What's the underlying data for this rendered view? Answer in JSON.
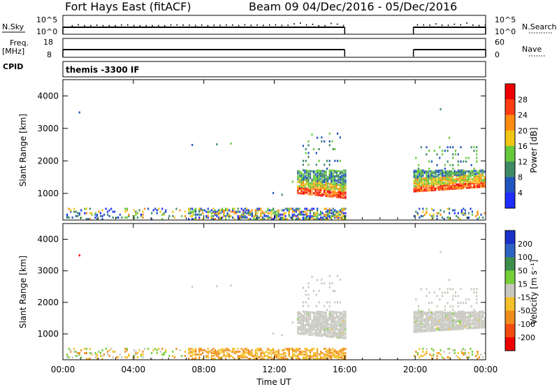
{
  "header": {
    "title_left": "Fort Hays East (fitACF)",
    "title_right": "Beam 09  04/Dec/2016 - 05/Dec/2016"
  },
  "strip1": {
    "left_label": "N.Sky",
    "left_ticks": [
      "10^5",
      "10^0"
    ],
    "right_label": "N.Search",
    "right_ticks": [
      "10^5",
      "10^0"
    ]
  },
  "strip2": {
    "left_label": "Freq.",
    "left_unit": "[MHz]",
    "left_ticks": [
      "18",
      "8"
    ],
    "right_label": "Nave",
    "right_ticks": [
      "60",
      "0"
    ]
  },
  "cpid": {
    "label": "CPID",
    "value": "themis -3300 IF"
  },
  "power_panel": {
    "ylabel": "Slant Range [km]",
    "yticks": [
      1000,
      2000,
      3000,
      4000
    ],
    "colorbar_title": "Power [dB]",
    "colorbar_ticks": [
      "4",
      "8",
      "12",
      "16",
      "20",
      "24",
      "28"
    ],
    "colorbar_colors": [
      "#1f2dff",
      "#2255bf",
      "#3f8a66",
      "#66c93a",
      "#f1c614",
      "#ff8c10",
      "#ff3d12",
      "#ee0000"
    ]
  },
  "velocity_panel": {
    "ylabel": "Slant Range [km]",
    "yticks": [
      1000,
      2000,
      3000,
      4000
    ],
    "colorbar_title": "Velocity [m s⁻¹]",
    "colorbar_ticks": [
      "200",
      "100",
      "50",
      "15",
      "-15",
      "-50",
      "-100",
      "-200"
    ],
    "colorbar_colors": [
      "#1a32c8",
      "#2f63c2",
      "#3f8e4d",
      "#76cf38",
      "#c8c8c0",
      "#f4c028",
      "#f08c1c",
      "#f24b10",
      "#ee0000"
    ]
  },
  "x_axis": {
    "ticks": [
      "00:00",
      "04:00",
      "08:00",
      "12:00",
      "16:00",
      "20:00",
      "00:00"
    ],
    "xlabel": "Time UT"
  },
  "chart_data": {
    "type": "heatmap",
    "x_units": "hours UT",
    "x_range": [
      0,
      24
    ],
    "y_range": [
      180,
      4500
    ],
    "data_gaps_hours": [
      [
        16.0,
        19.9
      ]
    ],
    "power_regions": [
      {
        "t": [
          13.3,
          16.0
        ],
        "range_km": [
          1000,
          1700
        ],
        "power_db": 20
      },
      {
        "t": [
          19.9,
          24.0
        ],
        "range_km": [
          1050,
          1700
        ],
        "power_db": 16
      },
      {
        "t": [
          0.0,
          16.0
        ],
        "range_km": [
          200,
          500
        ],
        "power_db": 10
      }
    ],
    "velocity_regions": [
      {
        "t": [
          13.3,
          16.0
        ],
        "range_km": [
          1000,
          1700
        ],
        "velocity": 0
      },
      {
        "t": [
          19.9,
          24.0
        ],
        "range_km": [
          1050,
          1700
        ],
        "velocity": 0
      },
      {
        "t": [
          7.0,
          16.0
        ],
        "range_km": [
          200,
          500
        ],
        "velocity": -40
      }
    ]
  }
}
